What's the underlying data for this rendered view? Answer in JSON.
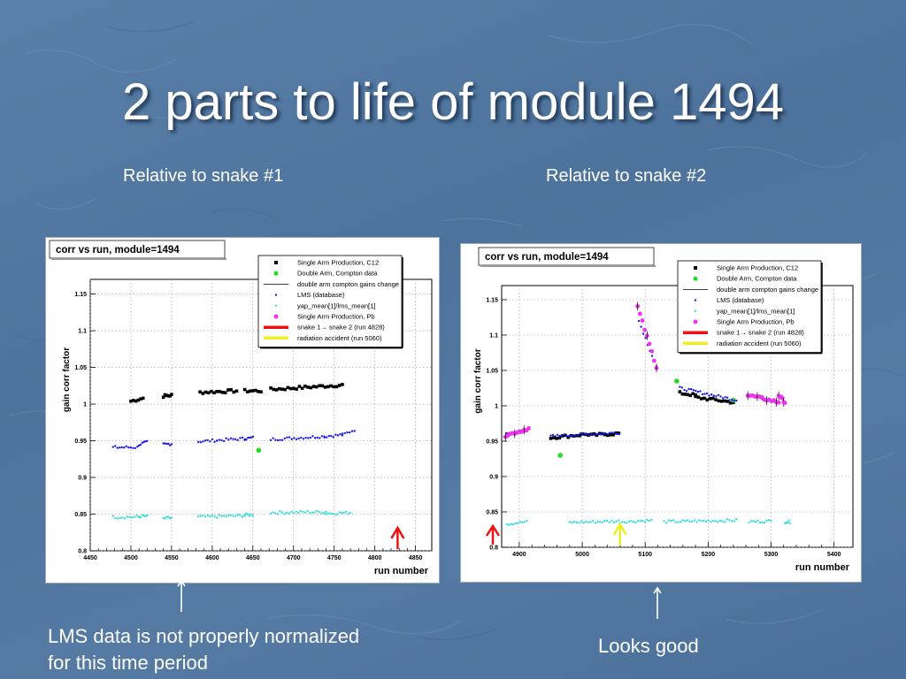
{
  "slide": {
    "title": "2 parts to life of module 1494",
    "left_subtitle": "Relative to snake #1",
    "right_subtitle": "Relative to snake #2",
    "left_note_line1": "LMS data is not properly normalized",
    "left_note_line2": "for this time period",
    "right_note": "Looks good"
  },
  "legend": [
    {
      "label": "Single Arm Production, C12",
      "marker": "square",
      "color": "#000000"
    },
    {
      "label": "Double Arm, Compton data",
      "marker": "circle",
      "color": "#22dd22"
    },
    {
      "label": "double arm compton gains change",
      "marker": "line",
      "color": "#000000"
    },
    {
      "label": "LMS (database)",
      "marker": "dot",
      "color": "#1a1aee"
    },
    {
      "label": "yap_mean[1]/lms_mean[1]",
      "marker": "dot",
      "color": "#33dddd"
    },
    {
      "label": "Single Arm Production, Pb",
      "marker": "circle",
      "color": "#ee33ee"
    },
    {
      "label": "snake 1→ snake 2 (run 4828)",
      "marker": "thickline",
      "color": "#ee1111"
    },
    {
      "label": "radiation accident (run 5060)",
      "marker": "thickline",
      "color": "#eeee22"
    }
  ],
  "chart_data": [
    {
      "type": "scatter",
      "title": "corr vs run, module=1494",
      "xlabel": "run number",
      "ylabel": "gain corr factor",
      "xlim": [
        4450,
        4870
      ],
      "ylim": [
        0.8,
        1.17
      ],
      "xticks": [
        4450,
        4500,
        4550,
        4600,
        4650,
        4700,
        4750,
        4800,
        4850
      ],
      "yticks": [
        0.8,
        0.85,
        0.9,
        0.95,
        1,
        1.05,
        1.1,
        1.15
      ],
      "ytick_labels": [
        "0.8",
        "0.85",
        "0.9",
        "0.95",
        "1",
        "1.05",
        "1.1",
        "1.15"
      ],
      "grid": true,
      "legend_position": "top-right",
      "series": [
        {
          "name": "Single Arm Production, C12",
          "segments": [
            [
              4500,
              4515,
              1.004,
              1.008
            ],
            [
              4540,
              4550,
              1.011,
              1.012
            ],
            [
              4585,
              4630,
              1.016,
              1.018
            ],
            [
              4640,
              4660,
              1.018,
              1.018
            ],
            [
              4672,
              4760,
              1.02,
              1.026
            ]
          ]
        },
        {
          "name": "Double Arm, Compton data",
          "points": [
            [
              4657,
              0.937
            ]
          ]
        },
        {
          "name": "LMS (database)",
          "segments": [
            [
              4478,
              4508,
              0.941,
              0.941
            ],
            [
              4510,
              4520,
              0.945,
              0.948
            ],
            [
              4540,
              4550,
              0.945,
              0.946
            ],
            [
              4583,
              4640,
              0.949,
              0.953
            ],
            [
              4640,
              4650,
              0.953,
              0.954
            ],
            [
              4672,
              4738,
              0.952,
              0.956
            ],
            [
              4738,
              4760,
              0.956,
              0.958
            ],
            [
              4760,
              4775,
              0.958,
              0.965
            ]
          ]
        },
        {
          "name": "yap_mean[1]/lms_mean[1]",
          "segments": [
            [
              4478,
              4510,
              0.846,
              0.846
            ],
            [
              4510,
              4520,
              0.847,
              0.847
            ],
            [
              4540,
              4550,
              0.844,
              0.845
            ],
            [
              4583,
              4640,
              0.846,
              0.848
            ],
            [
              4640,
              4650,
              0.849,
              0.849
            ],
            [
              4672,
              4740,
              0.852,
              0.853
            ],
            [
              4740,
              4770,
              0.851,
              0.852
            ]
          ]
        }
      ],
      "markers": [
        {
          "label": "snake 1→ snake 2 (run 4828)",
          "x": 4828,
          "color": "#ee1111"
        }
      ]
    },
    {
      "type": "scatter",
      "title": "corr vs run, module=1494",
      "xlabel": "run number",
      "ylabel": "gain corr factor",
      "xlim": [
        4872,
        5430
      ],
      "ylim": [
        0.8,
        1.17
      ],
      "xticks": [
        4900,
        5000,
        5100,
        5200,
        5300,
        5400
      ],
      "yticks": [
        0.8,
        0.85,
        0.9,
        0.95,
        1,
        1.05,
        1.1,
        1.15
      ],
      "ytick_labels": [
        "0.8",
        "0.85",
        "0.9",
        "0.95",
        "1",
        "1.05",
        "1.1",
        "1.15"
      ],
      "grid": true,
      "legend_position": "top-right",
      "series": [
        {
          "name": "Single Arm Production, C12",
          "segments": [
            [
              4950,
              5010,
              0.955,
              0.96
            ],
            [
              5010,
              5058,
              0.958,
              0.961
            ],
            [
              5155,
              5180,
              1.018,
              1.015
            ],
            [
              5180,
              5240,
              1.012,
              1.005
            ]
          ]
        },
        {
          "name": "Double Arm, Compton data",
          "points": [
            [
              4965,
              0.93
            ],
            [
              5150,
              1.035
            ],
            [
              5240,
              1.008
            ]
          ]
        },
        {
          "name": "LMS (database)",
          "segments": [
            [
              4880,
              4912,
              0.96,
              0.965
            ],
            [
              4950,
              5058,
              0.957,
              0.962
            ],
            [
              5090,
              5118,
              1.12,
              1.055
            ],
            [
              5155,
              5245,
              1.025,
              1.008
            ],
            [
              5265,
              5300,
              1.015,
              1.008
            ]
          ]
        },
        {
          "name": "yap_mean[1]/lms_mean[1]",
          "segments": [
            [
              4880,
              4912,
              0.833,
              0.836
            ],
            [
              4980,
              5058,
              0.835,
              0.837
            ],
            [
              5060,
              5110,
              0.836,
              0.838
            ],
            [
              5130,
              5245,
              0.836,
              0.838
            ],
            [
              5265,
              5300,
              0.836,
              0.837
            ],
            [
              5322,
              5330,
              0.836,
              0.836
            ]
          ]
        },
        {
          "name": "Single Arm Production, Pb",
          "segments": [
            [
              4878,
              4915,
              0.958,
              0.968
            ],
            [
              5088,
              5118,
              1.14,
              1.055
            ],
            [
              5263,
              5312,
              1.015,
              1.005
            ],
            [
              5312,
              5322,
              1.015,
              1.005
            ]
          ]
        }
      ],
      "markers": [
        {
          "label": "snake 1→ snake 2 (run 4828)",
          "x": 4828,
          "color": "#ee1111"
        },
        {
          "label": "radiation accident (run 5060)",
          "x": 5060,
          "color": "#eeee22"
        }
      ]
    }
  ]
}
